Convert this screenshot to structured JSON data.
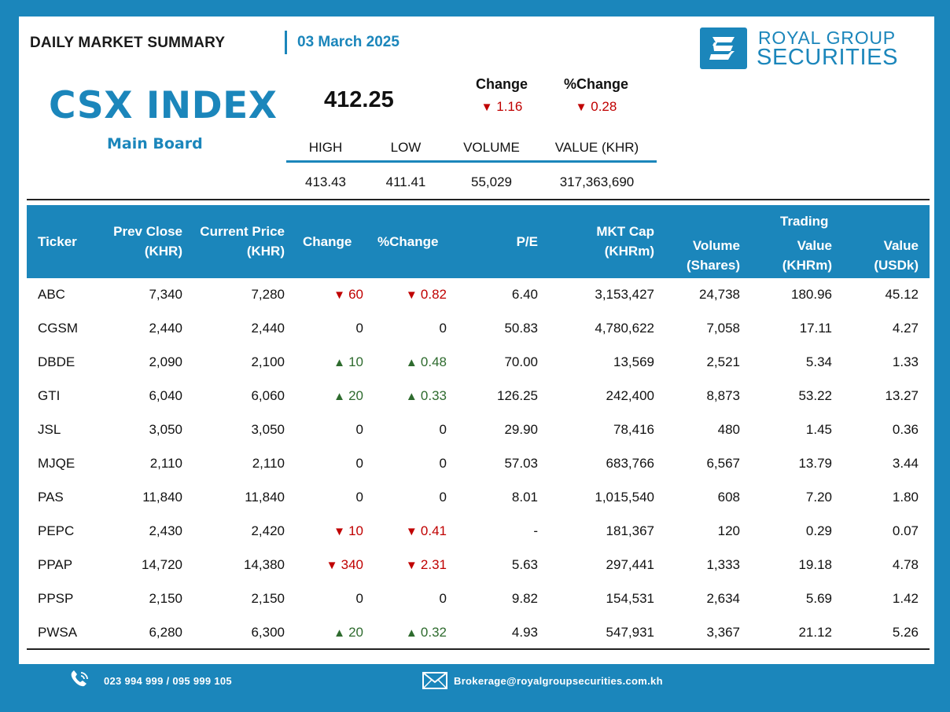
{
  "header": {
    "title": "DAILY MARKET SUMMARY",
    "date": "03 March 2025"
  },
  "logo": {
    "line1": "ROYAL GROUP",
    "line2": "SECURITIES",
    "brand_color": "#1b86bb"
  },
  "index": {
    "name": "CSX INDEX",
    "board": "Main Board",
    "value": "412.25",
    "change_label": "Change",
    "change_value": "1.16",
    "pct_change_label": "%Change",
    "pct_change_value": "0.28",
    "direction": "down",
    "stats_headers": [
      "HIGH",
      "LOW",
      "VOLUME",
      "VALUE (KHR)"
    ],
    "stats_values": [
      "413.43",
      "411.41",
      "55,029",
      "317,363,690"
    ]
  },
  "table": {
    "headers": {
      "ticker": "Ticker",
      "prev_close_1": "Prev Close",
      "prev_close_2": "(KHR)",
      "current_price_1": "Current Price",
      "current_price_2": "(KHR)",
      "change": "Change",
      "pct_change": "%Change",
      "pe": "P/E",
      "mkt_cap_1": "MKT Cap",
      "mkt_cap_2": "(KHRm)",
      "volume_1": "Volume",
      "volume_2": "(Shares)",
      "trading": "Trading",
      "value_khr_1": "Value",
      "value_khr_2": "(KHRm)",
      "value_usd_1": "Value",
      "value_usd_2": "(USDk)"
    },
    "rows": [
      {
        "ticker": "ABC",
        "prev": "7,340",
        "cur": "7,280",
        "dir": "down",
        "chg": "60",
        "pct": "0.82",
        "pe": "6.40",
        "cap": "3,153,427",
        "vol": "24,738",
        "vkhr": "180.96",
        "vusd": "45.12"
      },
      {
        "ticker": "CGSM",
        "prev": "2,440",
        "cur": "2,440",
        "dir": "flat",
        "chg": "0",
        "pct": "0",
        "pe": "50.83",
        "cap": "4,780,622",
        "vol": "7,058",
        "vkhr": "17.11",
        "vusd": "4.27"
      },
      {
        "ticker": "DBDE",
        "prev": "2,090",
        "cur": "2,100",
        "dir": "up",
        "chg": "10",
        "pct": "0.48",
        "pe": "70.00",
        "cap": "13,569",
        "vol": "2,521",
        "vkhr": "5.34",
        "vusd": "1.33"
      },
      {
        "ticker": "GTI",
        "prev": "6,040",
        "cur": "6,060",
        "dir": "up",
        "chg": "20",
        "pct": "0.33",
        "pe": "126.25",
        "cap": "242,400",
        "vol": "8,873",
        "vkhr": "53.22",
        "vusd": "13.27"
      },
      {
        "ticker": "JSL",
        "prev": "3,050",
        "cur": "3,050",
        "dir": "flat",
        "chg": "0",
        "pct": "0",
        "pe": "29.90",
        "cap": "78,416",
        "vol": "480",
        "vkhr": "1.45",
        "vusd": "0.36"
      },
      {
        "ticker": "MJQE",
        "prev": "2,110",
        "cur": "2,110",
        "dir": "flat",
        "chg": "0",
        "pct": "0",
        "pe": "57.03",
        "cap": "683,766",
        "vol": "6,567",
        "vkhr": "13.79",
        "vusd": "3.44"
      },
      {
        "ticker": "PAS",
        "prev": "11,840",
        "cur": "11,840",
        "dir": "flat",
        "chg": "0",
        "pct": "0",
        "pe": "8.01",
        "cap": "1,015,540",
        "vol": "608",
        "vkhr": "7.20",
        "vusd": "1.80"
      },
      {
        "ticker": "PEPC",
        "prev": "2,430",
        "cur": "2,420",
        "dir": "down",
        "chg": "10",
        "pct": "0.41",
        "pe": "-",
        "cap": "181,367",
        "vol": "120",
        "vkhr": "0.29",
        "vusd": "0.07"
      },
      {
        "ticker": "PPAP",
        "prev": "14,720",
        "cur": "14,380",
        "dir": "down",
        "chg": "340",
        "pct": "2.31",
        "pe": "5.63",
        "cap": "297,441",
        "vol": "1,333",
        "vkhr": "19.18",
        "vusd": "4.78"
      },
      {
        "ticker": "PPSP",
        "prev": "2,150",
        "cur": "2,150",
        "dir": "flat",
        "chg": "0",
        "pct": "0",
        "pe": "9.82",
        "cap": "154,531",
        "vol": "2,634",
        "vkhr": "5.69",
        "vusd": "1.42"
      },
      {
        "ticker": "PWSA",
        "prev": "6,280",
        "cur": "6,300",
        "dir": "up",
        "chg": "20",
        "pct": "0.32",
        "pe": "4.93",
        "cap": "547,931",
        "vol": "3,367",
        "vkhr": "21.12",
        "vusd": "5.26"
      }
    ]
  },
  "footer": {
    "phone": "023 994 999 / 095 999 105",
    "phone_icon": "phone-icon",
    "email": "Brokerage@royalgroupsecurities.com.kh",
    "email_icon": "envelope-icon"
  },
  "colors": {
    "accent": "#1b86bb",
    "down": "#c00000",
    "up": "#2e6b2e"
  }
}
